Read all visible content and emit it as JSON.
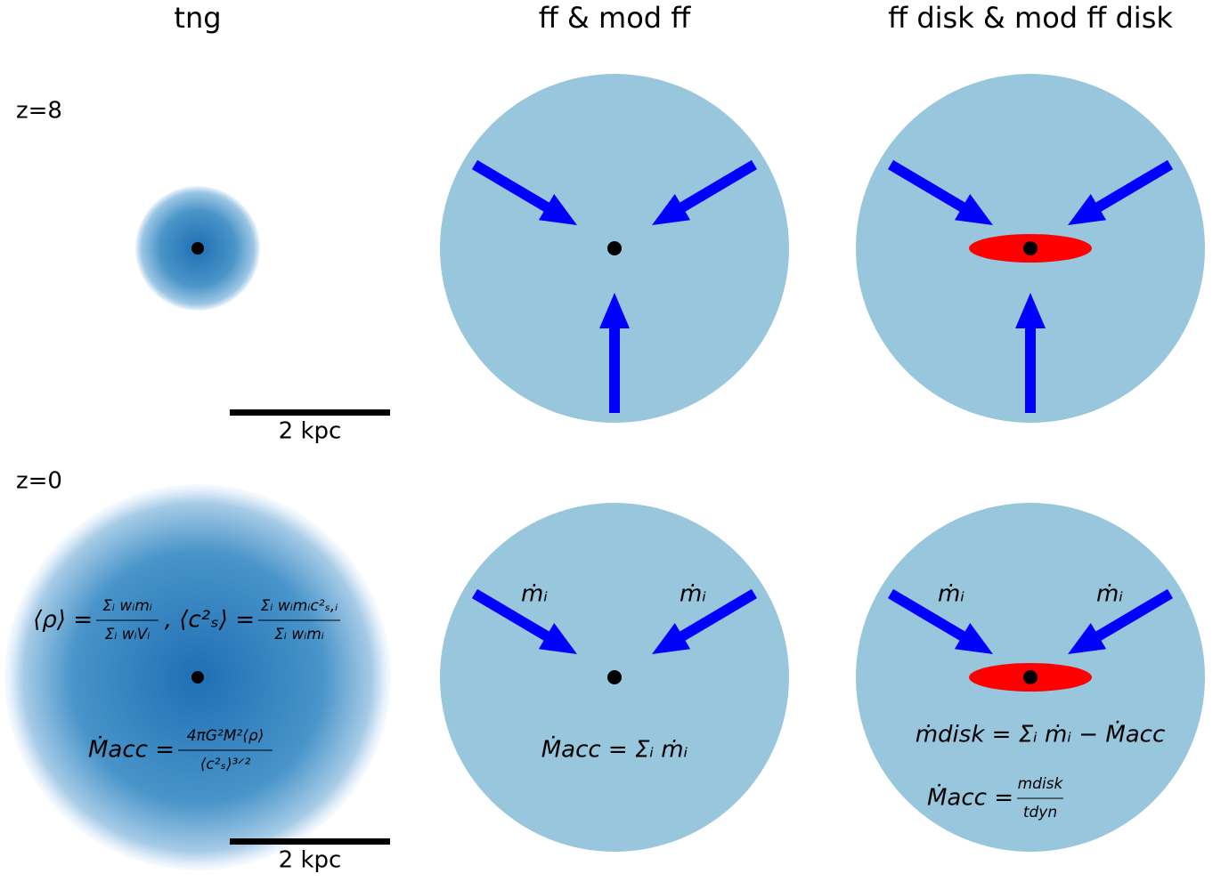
{
  "columns": [
    "tng",
    "ff & mod ff",
    "ff disk & mod ff disk"
  ],
  "rows": [
    "z=8",
    "z=0"
  ],
  "scale_bars": [
    "2 kpc",
    "2 kpc"
  ],
  "arrow_labels": [
    "ṁᵢ",
    "ṁᵢ",
    "ṁᵢ",
    "ṁᵢ"
  ],
  "equations": {
    "tng_density": {
      "lhs": "⟨ρ⟩ =",
      "num": "Σᵢ wᵢmᵢ",
      "den": "Σᵢ wᵢVᵢ"
    },
    "tng_sound": {
      "lhs": ", ⟨c²ₛ⟩ =",
      "num": "Σᵢ wᵢmᵢc²ₛ,ᵢ",
      "den": "Σᵢ wᵢmᵢ"
    },
    "tng_acc": {
      "lhs": "Ṁacc =",
      "num": "4πG²M²⟨ρ⟩",
      "den": "⟨c²ₛ⟩³ᐟ²"
    },
    "ff_acc": "Ṁacc = Σᵢ ṁᵢ",
    "disk_mass": "ṁdisk = Σᵢ ṁᵢ − Ṁacc",
    "disk_acc": {
      "lhs": "Ṁacc =",
      "num": "mdisk",
      "den": "tdyn"
    }
  }
}
